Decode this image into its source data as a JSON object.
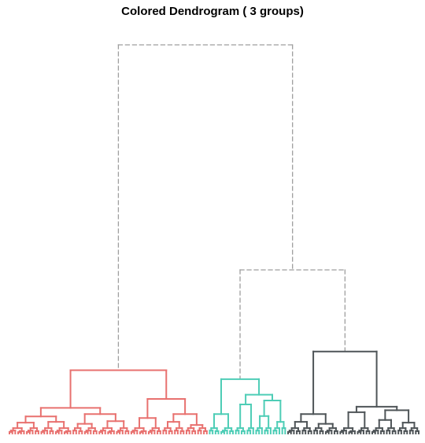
{
  "chart_data": {
    "type": "dendrogram",
    "title": "Colored Dendrogram ( 3  groups)",
    "groups": 3,
    "group_colors": [
      "#E8716F",
      "#4ECDB6",
      "#4F5558"
    ],
    "cut_line_color": "#9E9E9E",
    "cut_line_style": "dashed",
    "axes_visible": false,
    "leaf_labels_visible": false,
    "tree": {
      "h": 10,
      "dashed": true,
      "children": [
        {
          "h": 1.63,
          "group": 0,
          "children": [
            {
              "h": 0.66,
              "children": [
                {
                  "h": 0.44,
                  "children": [
                    {
                      "h": 0.28,
                      "children": [
                        {
                          "n": 6
                        },
                        {
                          "n": 5
                        }
                      ]
                    },
                    {
                      "h": 0.3,
                      "children": [
                        {
                          "n": 5
                        },
                        {
                          "n": 6
                        }
                      ]
                    }
                  ]
                },
                {
                  "h": 0.5,
                  "children": [
                    {
                      "h": 0.25,
                      "children": [
                        {
                          "n": 4
                        },
                        {
                          "n": 5
                        }
                      ]
                    },
                    {
                      "h": 0.32,
                      "children": [
                        {
                          "n": 6
                        },
                        {
                          "n": 5
                        }
                      ]
                    }
                  ]
                }
              ]
            },
            {
              "h": 0.89,
              "children": [
                {
                  "h": 0.4,
                  "children": [
                    {
                      "n": 6
                    },
                    {
                      "n": 5
                    }
                  ]
                },
                {
                  "h": 0.5,
                  "children": [
                    {
                      "h": 0.3,
                      "children": [
                        {
                          "n": 4
                        },
                        {
                          "n": 4
                        }
                      ]
                    },
                    {
                      "h": 0.22,
                      "children": [
                        {
                          "n": 4
                        },
                        {
                          "n": 4
                        }
                      ]
                    }
                  ]
                }
              ]
            }
          ]
        },
        {
          "h": 4.21,
          "dashed": true,
          "children": [
            {
              "h": 1.4,
              "group": 1,
              "children": [
                {
                  "h": 0.5,
                  "children": [
                    {
                      "n": 4
                    },
                    {
                      "n": 5
                    }
                  ]
                },
                {
                  "h": 1.0,
                  "children": [
                    {
                      "h": 0.75,
                      "children": [
                        {
                          "n": 4
                        },
                        {
                          "n": 3
                        }
                      ]
                    },
                    {
                      "h": 0.85,
                      "children": [
                        {
                          "h": 0.45,
                          "children": [
                            {
                              "n": 3
                            },
                            {
                              "n": 3
                            }
                          ]
                        },
                        {
                          "h": 0.3,
                          "children": [
                            {
                              "n": 3
                            },
                            {
                              "n": 2
                            }
                          ]
                        }
                      ]
                    }
                  ]
                }
              ]
            },
            {
              "h": 2.11,
              "group": 2,
              "children": [
                {
                  "h": 0.5,
                  "children": [
                    {
                      "h": 0.3,
                      "children": [
                        {
                          "n": 5
                        },
                        {
                          "n": 4
                        }
                      ]
                    },
                    {
                      "h": 0.25,
                      "children": [
                        {
                          "n": 4
                        },
                        {
                          "n": 5
                        }
                      ]
                    }
                  ]
                },
                {
                  "h": 0.69,
                  "children": [
                    {
                      "h": 0.55,
                      "children": [
                        {
                          "n": 6
                        },
                        {
                          "n": 5
                        }
                      ]
                    },
                    {
                      "h": 0.6,
                      "children": [
                        {
                          "h": 0.35,
                          "children": [
                            {
                              "n": 5
                            },
                            {
                              "n": 4
                            }
                          ]
                        },
                        {
                          "h": 0.28,
                          "children": [
                            {
                              "n": 4
                            },
                            {
                              "n": 4
                            }
                          ]
                        }
                      ]
                    }
                  ]
                }
              ]
            }
          ]
        }
      ]
    }
  }
}
